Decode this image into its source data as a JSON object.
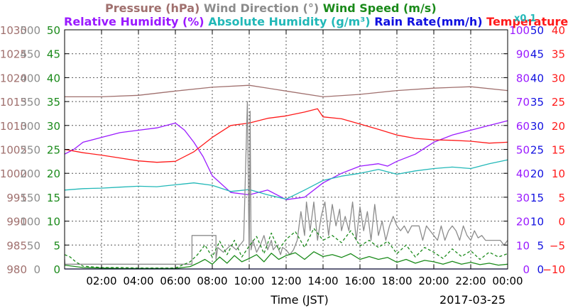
{
  "colors": {
    "pressure": "#a0706e",
    "wind_direction": "#8c8c8c",
    "wind_speed": "#1a8a1a",
    "humidity": "#9a1aff",
    "abs_humidity": "#22b8b8",
    "rain": "#1010e0",
    "temperature": "#ff1a1a",
    "grid": "#555555"
  },
  "chart_data": {
    "type": "line",
    "xlabel": "Time (JST)",
    "date_label": "2017-03-25",
    "xlim": [
      0,
      24
    ],
    "x_ticks": [
      {
        "v": 2,
        "label": "02:00"
      },
      {
        "v": 4,
        "label": "04:00"
      },
      {
        "v": 6,
        "label": "06:00"
      },
      {
        "v": 8,
        "label": "08:00"
      },
      {
        "v": 10,
        "label": "10:00"
      },
      {
        "v": 12,
        "label": "12:00"
      },
      {
        "v": 14,
        "label": "14:00"
      },
      {
        "v": 16,
        "label": "16:00"
      },
      {
        "v": 18,
        "label": "18:00"
      },
      {
        "v": 20,
        "label": "20:00"
      },
      {
        "v": 22,
        "label": "22:00"
      },
      {
        "v": 24,
        "label": "00:00"
      }
    ],
    "grid": true,
    "legend": {
      "line1": [
        {
          "label": "Pressure (hPa)",
          "color_key": "pressure"
        },
        {
          "label": "Wind Direction (°)",
          "color_key": "wind_direction"
        },
        {
          "label": "Wind Speed (m/s)",
          "color_key": "wind_speed"
        }
      ],
      "line2": [
        {
          "label": "Relative Humidity (%)",
          "color_key": "humidity"
        },
        {
          "label": "Absolute Humidity (g/m³)",
          "color_key": "abs_humidity"
        },
        {
          "label": "Rain Rate(mm/h)",
          "color_key": "rain"
        },
        {
          "label": "Temperature (°C)",
          "color_key": "temperature"
        }
      ],
      "abs_scale_note": "x0.1"
    },
    "axes": {
      "pressure": {
        "side": "left",
        "ylim": [
          980,
          1030
        ],
        "labels": [
          "980",
          "985",
          "990",
          "995",
          "1000",
          "1005",
          "1010",
          "1015",
          "1020",
          "1025",
          "1030"
        ]
      },
      "wind_direction": {
        "side": "left",
        "ylim": [
          0,
          500
        ],
        "labels": [
          "0",
          "50",
          "100",
          "150",
          "200",
          "250",
          "300",
          "350",
          "400",
          "450",
          "500"
        ]
      },
      "wind_speed": {
        "side": "left",
        "ylim": [
          0,
          50
        ],
        "labels": [
          "0",
          "5",
          "10",
          "15",
          "20",
          "25",
          "30",
          "35",
          "40",
          "45",
          "50"
        ]
      },
      "humidity": {
        "side": "right",
        "ylim": [
          0,
          100
        ],
        "labels": [
          "0",
          "10",
          "20",
          "30",
          "40",
          "50",
          "60",
          "70",
          "80",
          "90",
          "100"
        ]
      },
      "rain": {
        "side": "right",
        "ylim": [
          0,
          50
        ],
        "labels": [
          "0",
          "5",
          "10",
          "15",
          "20",
          "25",
          "30",
          "35",
          "40",
          "45",
          "50"
        ]
      },
      "temperature": {
        "side": "right",
        "ylim": [
          -10,
          40
        ],
        "labels": [
          "−10",
          "−5",
          "0",
          "5",
          "10",
          "15",
          "20",
          "25",
          "30",
          "35",
          "40"
        ]
      }
    },
    "series": [
      {
        "name": "Pressure (hPa)",
        "color_key": "pressure",
        "axis": "pressure",
        "style": "solid",
        "x": [
          0,
          2,
          4,
          6,
          8,
          10,
          12,
          14,
          16,
          18,
          20,
          22,
          24
        ],
        "y": [
          1016.0,
          1016.0,
          1016.3,
          1017.2,
          1018.0,
          1018.4,
          1017.2,
          1016.0,
          1016.5,
          1017.3,
          1017.8,
          1018.1,
          1017.3
        ]
      },
      {
        "name": "Relative Humidity (%)",
        "color_key": "humidity",
        "axis": "humidity",
        "style": "solid",
        "x": [
          0,
          0.5,
          1,
          2,
          3,
          4,
          5,
          6,
          6.5,
          7,
          7.5,
          8,
          9,
          10,
          11,
          12,
          13,
          14,
          15,
          16,
          17,
          17.5,
          18,
          19,
          20,
          21,
          22,
          23,
          24
        ],
        "y": [
          48,
          50,
          53,
          55,
          57,
          58,
          59,
          61,
          58,
          53,
          47,
          39,
          32,
          31,
          33,
          29,
          30,
          36,
          40,
          43,
          44,
          43,
          45,
          48,
          53,
          56,
          58,
          60,
          62
        ]
      },
      {
        "name": "Absolute Humidity (g/m³)",
        "color_key": "abs_humidity",
        "axis": "rain",
        "style": "solid",
        "x": [
          0,
          1,
          2,
          3,
          4,
          5,
          6,
          7,
          8,
          9,
          10,
          11,
          12,
          13,
          14,
          15,
          16,
          17,
          18,
          19,
          20,
          21,
          22,
          23,
          24
        ],
        "y": [
          16.5,
          16.8,
          16.9,
          17.1,
          17.3,
          17.2,
          17.6,
          18.0,
          17.5,
          16.2,
          16.6,
          15.5,
          14.6,
          16.5,
          18.5,
          19.4,
          20.0,
          20.8,
          19.8,
          20.5,
          21.0,
          21.3,
          21.0,
          22.0,
          22.8
        ]
      },
      {
        "name": "Temperature (°C)",
        "color_key": "temperature",
        "axis": "temperature",
        "style": "solid",
        "x": [
          0,
          1,
          2,
          3,
          4,
          5,
          6,
          7,
          8,
          9,
          10,
          11,
          12,
          13,
          13.7,
          14,
          15,
          16,
          17,
          18,
          19,
          20,
          21,
          22,
          23,
          24
        ],
        "y": [
          15.0,
          14.3,
          13.8,
          13.2,
          12.6,
          12.3,
          12.5,
          14.5,
          17.5,
          20.0,
          20.5,
          21.5,
          22.0,
          22.8,
          23.5,
          21.8,
          21.4,
          20.3,
          19.2,
          18.0,
          17.3,
          17.0,
          16.9,
          16.7,
          16.3,
          16.5
        ]
      },
      {
        "name": "Wind Direction (°)",
        "color_key": "wind_direction",
        "axis": "wind_direction",
        "style": "solid",
        "x": [
          0,
          0.02,
          6.9,
          6.9,
          8.2,
          8.2,
          8.3,
          8.6,
          9.0,
          9.3,
          9.7,
          9.9,
          10.0,
          10.05,
          10.1,
          10.2,
          10.4,
          10.6,
          10.8,
          11.0,
          11.2,
          11.3,
          11.5,
          11.7,
          11.8,
          12.0,
          12.2,
          12.4,
          12.6,
          12.8,
          13.0,
          13.1,
          13.3,
          13.5,
          13.7,
          13.9,
          14.1,
          14.3,
          14.5,
          14.7,
          14.9,
          15.0,
          15.2,
          15.4,
          15.6,
          15.8,
          16.0,
          16.2,
          16.4,
          16.6,
          16.8,
          17.0,
          17.2,
          17.4,
          17.6,
          17.8,
          18.0,
          18.2,
          18.4,
          18.6,
          18.8,
          19.0,
          19.2,
          19.4,
          19.6,
          19.8,
          20.0,
          20.2,
          20.4,
          20.6,
          20.8,
          21.0,
          21.2,
          21.4,
          21.6,
          21.8,
          22.0,
          22.2,
          22.4,
          22.6,
          22.8,
          23.0,
          23.2,
          23.4,
          23.6,
          23.8,
          24
        ],
        "y": [
          20,
          10,
          10,
          70,
          70,
          20,
          45,
          35,
          50,
          40,
          60,
          350,
          20,
          330,
          40,
          60,
          35,
          50,
          70,
          40,
          60,
          40,
          50,
          30,
          45,
          40,
          30,
          40,
          60,
          120,
          70,
          140,
          80,
          140,
          60,
          110,
          140,
          70,
          135,
          90,
          125,
          80,
          110,
          80,
          140,
          60,
          130,
          80,
          120,
          60,
          135,
          70,
          100,
          60,
          90,
          110,
          90,
          80,
          90,
          75,
          90,
          90,
          90,
          60,
          90,
          80,
          70,
          60,
          90,
          60,
          80,
          90,
          80,
          60,
          90,
          70,
          60,
          80,
          65,
          70,
          60,
          60,
          60,
          60,
          60,
          50,
          60
        ]
      },
      {
        "name": "Wind Speed (m/s)",
        "color_key": "wind_speed",
        "axis": "wind_speed",
        "style": "dashed",
        "x": [
          0,
          0.3,
          0.6,
          1,
          2,
          3,
          4,
          5,
          6,
          6.8,
          7.2,
          7.6,
          8,
          8.4,
          8.8,
          9.2,
          9.6,
          10,
          10.4,
          10.8,
          11.2,
          11.6,
          12,
          12.5,
          13,
          13.5,
          14,
          14.5,
          15,
          15.5,
          16,
          16.5,
          17,
          17.5,
          18,
          18.5,
          19,
          19.5,
          20,
          20.5,
          21,
          21.5,
          22,
          22.5,
          23,
          23.5,
          24
        ],
        "y": [
          3,
          2.5,
          1.5,
          0.6,
          0.3,
          0.3,
          0.2,
          0.2,
          0.2,
          1.5,
          3.0,
          5.0,
          2.5,
          5.8,
          3.0,
          6.0,
          2.5,
          4.8,
          6.8,
          3.2,
          7.5,
          4.0,
          6.2,
          7.8,
          4.5,
          8.5,
          6.0,
          7.0,
          5.5,
          8.0,
          4.8,
          6.0,
          4.5,
          5.8,
          3.2,
          5.0,
          2.5,
          4.5,
          3.5,
          2.2,
          4.2,
          2.6,
          3.8,
          2.0,
          3.5,
          2.5,
          3.2
        ]
      },
      {
        "name": "Wind Speed (m/s)",
        "color_key": "wind_speed",
        "axis": "wind_speed",
        "style": "solid",
        "x": [
          0,
          1,
          2,
          3,
          4,
          5,
          6,
          6.8,
          7.2,
          7.6,
          8,
          8.4,
          8.8,
          9.2,
          9.6,
          10,
          10.4,
          10.8,
          11.2,
          11.6,
          12,
          12.5,
          13,
          13.5,
          14,
          14.5,
          15,
          15.5,
          16,
          16.5,
          17,
          17.5,
          18,
          18.5,
          19,
          19.5,
          20,
          20.5,
          21,
          21.5,
          22,
          22.5,
          23,
          23.5,
          24
        ],
        "y": [
          0.8,
          0.3,
          0.2,
          0.1,
          0.1,
          0.1,
          0.1,
          0.5,
          1.2,
          2.0,
          1.0,
          2.5,
          1.2,
          2.8,
          1.5,
          2.2,
          3.0,
          1.5,
          3.3,
          2.0,
          2.8,
          3.4,
          2.0,
          3.6,
          2.6,
          3.0,
          2.4,
          3.2,
          2.0,
          2.6,
          2.0,
          2.4,
          1.4,
          2.0,
          1.2,
          1.8,
          1.5,
          1.0,
          1.6,
          1.0,
          1.4,
          0.9,
          1.2,
          0.8,
          1.0
        ]
      },
      {
        "name": "Rain Rate(mm/h)",
        "color_key": "rain",
        "axis": "rain",
        "style": "solid",
        "x": [
          0,
          24
        ],
        "y": [
          0,
          0
        ]
      }
    ]
  }
}
